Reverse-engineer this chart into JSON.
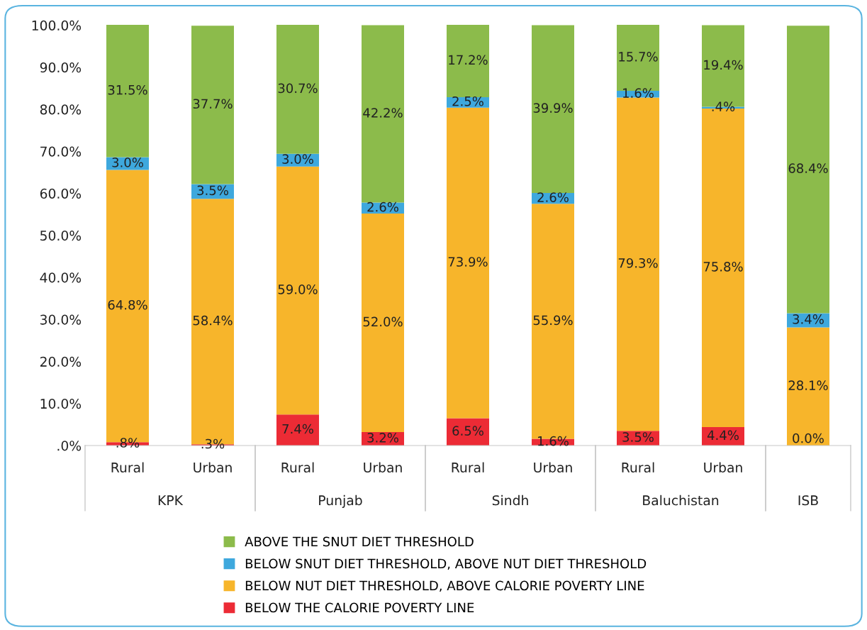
{
  "chart_data": {
    "type": "bar",
    "stacked": true,
    "categories": [
      "Rural",
      "Urban",
      "Rural",
      "Urban",
      "Rural",
      "Urban",
      "Rural",
      "Urban",
      null
    ],
    "annotations": [
      "KPK",
      "Punjab",
      "Sindh",
      "Baluchistan",
      "ISB"
    ],
    "series": [
      {
        "name": "BELOW THE CALORIE POVERTY LINE",
        "color": "#ec2b35",
        "values": [
          0.8,
          0.3,
          7.4,
          3.2,
          6.5,
          1.6,
          3.5,
          4.4,
          0.0
        ],
        "value_labels": [
          ".8%",
          ".3%",
          "7.4%",
          "3.2%",
          "6.5%",
          "1.6%",
          "3.5%",
          "4.4%",
          "0.0%"
        ]
      },
      {
        "name": "BELOW NUT DIET THRESHOLD, ABOVE CALORIE POVERTY LINE",
        "color": "#f7b52b",
        "values": [
          64.8,
          58.4,
          59.0,
          52.0,
          73.9,
          55.9,
          79.3,
          75.8,
          28.1
        ],
        "value_labels": [
          "64.8%",
          "58.4%",
          "59.0%",
          "52.0%",
          "73.9%",
          "55.9%",
          "79.3%",
          "75.8%",
          "28.1%"
        ]
      },
      {
        "name": "BELOW SNUT DIET THRESHOLD, ABOVE NUT DIET THRESHOLD",
        "color": "#3ea8dd",
        "values": [
          3.0,
          3.5,
          3.0,
          2.6,
          2.5,
          2.6,
          1.6,
          0.4,
          3.4
        ],
        "value_labels": [
          "3.0%",
          "3.5%",
          "3.0%",
          "2.6%",
          "2.5%",
          "2.6%",
          "1.6%",
          ".4%",
          "3.4%"
        ]
      },
      {
        "name": "ABOVE THE SNUT DIET THRESHOLD",
        "color": "#8cbb4b",
        "values": [
          31.5,
          37.7,
          30.7,
          42.2,
          17.2,
          39.9,
          15.7,
          19.4,
          68.4
        ],
        "value_labels": [
          "31.5%",
          "37.7%",
          "30.7%",
          "42.2%",
          "17.2%",
          "39.9%",
          "15.7%",
          "19.4%",
          "68.4%"
        ]
      }
    ],
    "ylim": [
      0,
      100.1
    ],
    "yticks": [
      {
        "value": 0,
        "label": ".0%"
      },
      {
        "value": 10,
        "label": "10.0%"
      },
      {
        "value": 20,
        "label": "20.0%"
      },
      {
        "value": 30,
        "label": "30.0%"
      },
      {
        "value": 40,
        "label": "40.0%"
      },
      {
        "value": 50,
        "label": "50.0%"
      },
      {
        "value": 60,
        "label": "60.0%"
      },
      {
        "value": 70,
        "label": "70.0%"
      },
      {
        "value": 80,
        "label": "80.0%"
      },
      {
        "value": 90,
        "label": "90.0%"
      },
      {
        "value": 100,
        "label": "100.0%"
      }
    ],
    "legend": "bottom",
    "grid": false
  }
}
